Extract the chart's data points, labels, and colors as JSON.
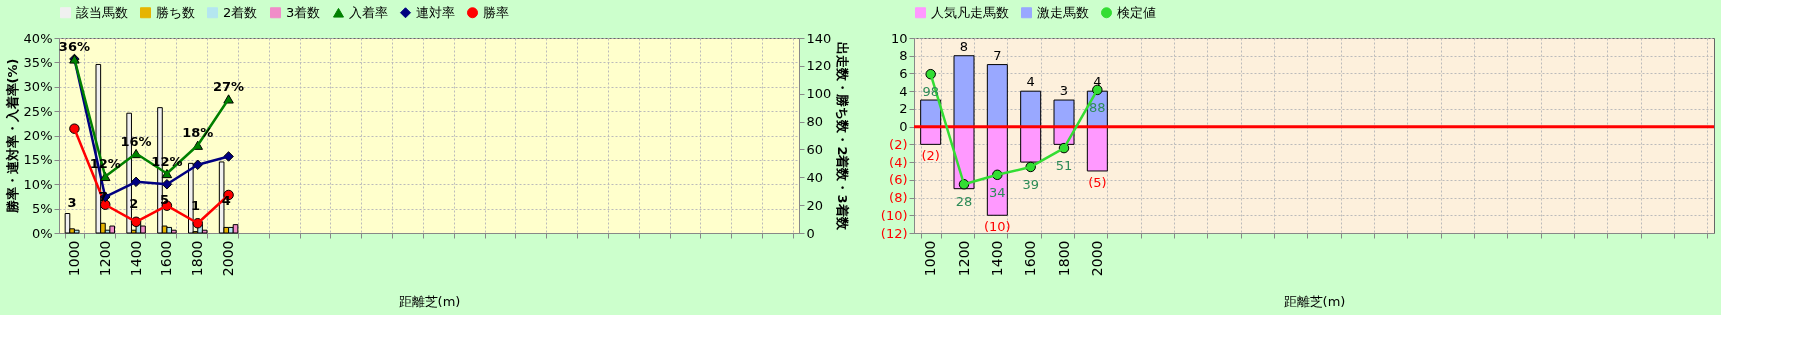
{
  "chart_data": [
    {
      "type": "line",
      "xlabel": "距離芝(m)",
      "ylabel": "勝率・連対率・入着率(%)",
      "y2label": "出走数・勝ち数・2着数・3着数",
      "categories": [
        "1000",
        "1200",
        "1400",
        "1600",
        "1800",
        "2000",
        null,
        null,
        null,
        null,
        null,
        null,
        null,
        null,
        null,
        null,
        null,
        null,
        null,
        null,
        null,
        null,
        null,
        null
      ],
      "series": [
        {
          "name": "該当馬数",
          "type": "bar",
          "axis": "y2",
          "color": "#f0f0f0",
          "values": [
            14,
            121,
            86,
            90,
            50,
            51,
            null,
            null,
            null,
            null,
            null,
            null,
            null,
            null,
            null,
            null,
            null,
            null,
            null,
            null,
            null,
            null,
            null,
            null
          ]
        },
        {
          "name": "勝ち数",
          "type": "bar",
          "axis": "y2",
          "color": "#e6b400",
          "values": [
            3,
            7,
            2,
            5,
            1,
            4,
            null,
            null,
            null,
            null,
            null,
            null,
            null,
            null,
            null,
            null,
            null,
            null,
            null,
            null,
            null,
            null,
            null,
            null
          ],
          "value_labels": [
            "3",
            "7",
            "2",
            "5",
            "1",
            "4",
            null,
            null,
            null,
            null,
            null,
            null,
            null,
            null,
            null,
            null,
            null,
            null,
            null,
            null,
            null,
            null,
            null,
            null
          ]
        },
        {
          "name": "2着数",
          "type": "bar",
          "axis": "y2",
          "color": "#b4e6f0",
          "values": [
            2,
            2,
            7,
            4,
            6,
            4,
            null,
            null,
            null,
            null,
            null,
            null,
            null,
            null,
            null,
            null,
            null,
            null,
            null,
            null,
            null,
            null,
            null,
            null
          ]
        },
        {
          "name": "3着数",
          "type": "bar",
          "axis": "y2",
          "color": "#f08cc8",
          "values": [
            0,
            5,
            5,
            2,
            2,
            6,
            null,
            null,
            null,
            null,
            null,
            null,
            null,
            null,
            null,
            null,
            null,
            null,
            null,
            null,
            null,
            null,
            null,
            null
          ]
        },
        {
          "name": "入着率",
          "type": "line",
          "color": "#008000",
          "marker": "triangle",
          "values": [
            35.7,
            11.6,
            16.3,
            12.2,
            18.0,
            27.5,
            null,
            null,
            null,
            null,
            null,
            null,
            null,
            null,
            null,
            null,
            null,
            null,
            null,
            null,
            null,
            null,
            null,
            null
          ],
          "value_labels": [
            "36%",
            "12%",
            "16%",
            "12%",
            "18%",
            "27%",
            null,
            null,
            null,
            null,
            null,
            null,
            null,
            null,
            null,
            null,
            null,
            null,
            null,
            null,
            null,
            null,
            null,
            null
          ]
        },
        {
          "name": "連対率",
          "type": "line",
          "color": "#000080",
          "marker": "diamond",
          "values": [
            35.7,
            7.4,
            10.5,
            10.0,
            14.0,
            15.7,
            null,
            null,
            null,
            null,
            null,
            null,
            null,
            null,
            null,
            null,
            null,
            null,
            null,
            null,
            null,
            null,
            null,
            null
          ]
        },
        {
          "name": "勝率",
          "type": "line",
          "color": "#ff0000",
          "marker": "circle",
          "values": [
            21.4,
            5.8,
            2.3,
            5.6,
            2.0,
            7.8,
            null,
            null,
            null,
            null,
            null,
            null,
            null,
            null,
            null,
            null,
            null,
            null,
            null,
            null,
            null,
            null,
            null,
            null
          ]
        }
      ],
      "ylim": [
        0,
        40
      ],
      "yticks": [
        {
          "value": 0,
          "label": "0%"
        },
        {
          "value": 5,
          "label": "5%"
        },
        {
          "value": 10,
          "label": "10%"
        },
        {
          "value": 15,
          "label": "15%"
        },
        {
          "value": 20,
          "label": "20%"
        },
        {
          "value": 25,
          "label": "25%"
        },
        {
          "value": 30,
          "label": "30%"
        },
        {
          "value": 35,
          "label": "35%"
        },
        {
          "value": 40,
          "label": "40%"
        }
      ],
      "y2lim": [
        0,
        140
      ],
      "y2ticks": [
        0,
        20,
        40,
        60,
        80,
        100,
        120,
        140
      ],
      "grid": true,
      "legend": "top",
      "line_style": "solid"
    },
    {
      "type": "bar",
      "xlabel": "距離芝(m)",
      "stacked": true,
      "categories": [
        "1000",
        "1200",
        "1400",
        "1600",
        "1800",
        "2000",
        null,
        null,
        null,
        null,
        null,
        null,
        null,
        null,
        null,
        null,
        null,
        null,
        null,
        null,
        null,
        null,
        null,
        null
      ],
      "series": [
        {
          "name": "人気凡走馬数",
          "color": "#ff99ff",
          "values": [
            -2,
            -7,
            -10,
            -4,
            -2,
            -5,
            null,
            null,
            null,
            null,
            null,
            null,
            null,
            null,
            null,
            null,
            null,
            null,
            null,
            null,
            null,
            null,
            null,
            null
          ],
          "value_labels": [
            "(2)",
            null,
            "(10)",
            null,
            null,
            "(5)",
            null,
            null,
            null,
            null,
            null,
            null,
            null,
            null,
            null,
            null,
            null,
            null,
            null,
            null,
            null,
            null,
            null,
            null
          ]
        },
        {
          "name": "激走馬数",
          "color": "#99a8ff",
          "values": [
            3,
            8,
            7,
            4,
            3,
            4,
            null,
            null,
            null,
            null,
            null,
            null,
            null,
            null,
            null,
            null,
            null,
            null,
            null,
            null,
            null,
            null,
            null,
            null
          ],
          "value_labels": [
            null,
            "8",
            "7",
            "4",
            "3",
            "4",
            null,
            null,
            null,
            null,
            null,
            null,
            null,
            null,
            null,
            null,
            null,
            null,
            null,
            null,
            null,
            null,
            null,
            null
          ]
        },
        {
          "name": "検定値",
          "type": "line",
          "axis": "y2",
          "color": "#33dd33",
          "marker": "circle",
          "values": [
            98,
            28,
            34,
            39,
            51,
            88,
            null,
            null,
            null,
            null,
            null,
            null,
            null,
            null,
            null,
            null,
            null,
            null,
            null,
            null,
            null,
            null,
            null,
            null
          ],
          "value_labels": [
            "98",
            "28",
            "34",
            "39",
            "51",
            "88",
            null,
            null,
            null,
            null,
            null,
            null,
            null,
            null,
            null,
            null,
            null,
            null,
            null,
            null,
            null,
            null,
            null,
            null
          ]
        }
      ],
      "ylim": [
        -12,
        10
      ],
      "yticks": [
        {
          "value": -12,
          "label": "(12)"
        },
        {
          "value": -10,
          "label": "(10)"
        },
        {
          "value": -8,
          "label": "(8)"
        },
        {
          "value": -6,
          "label": "(6)"
        },
        {
          "value": -4,
          "label": "(4)"
        },
        {
          "value": -2,
          "label": "(2)"
        },
        0,
        2,
        4,
        6,
        8,
        10
      ],
      "y2lim": [
        -3,
        121
      ],
      "ref_lines": [
        {
          "axis": "y",
          "value": 0,
          "color": "#ff0000"
        }
      ],
      "grid": true,
      "legend": "top",
      "line_style": "solid"
    }
  ]
}
